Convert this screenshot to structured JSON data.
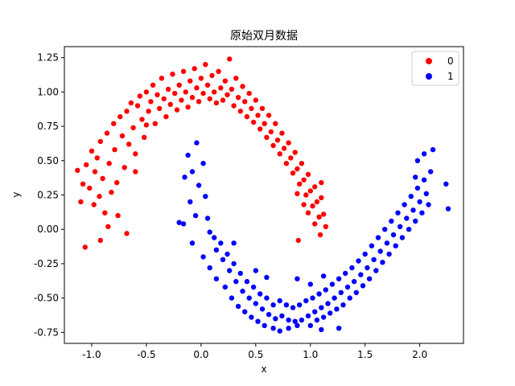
{
  "chart_data": {
    "type": "scatter",
    "title": "原始双月数据",
    "xlabel": "x",
    "ylabel": "y",
    "xlim": [
      -1.25,
      2.4
    ],
    "ylim": [
      -0.83,
      1.33
    ],
    "xticks": [
      -1.0,
      -0.5,
      0.0,
      0.5,
      1.0,
      1.5,
      2.0
    ],
    "xtick_labels": [
      "-1.0",
      "-0.5",
      "0.0",
      "0.5",
      "1.0",
      "1.5",
      "2.0"
    ],
    "yticks": [
      -0.75,
      -0.5,
      -0.25,
      0.0,
      0.25,
      0.5,
      0.75,
      1.0,
      1.25
    ],
    "ytick_labels": [
      "-0.75",
      "-0.50",
      "-0.25",
      "0.00",
      "0.25",
      "0.50",
      "0.75",
      "1.00",
      "1.25"
    ],
    "grid": false,
    "legend_position": "top-right",
    "series": [
      {
        "name": "0",
        "color": "#ff0000",
        "points": [
          [
            -1.13,
            0.43
          ],
          [
            -1.1,
            0.2
          ],
          [
            -1.08,
            0.33
          ],
          [
            -1.05,
            0.47
          ],
          [
            -1.02,
            0.3
          ],
          [
            -1.0,
            0.57
          ],
          [
            -0.98,
            0.18
          ],
          [
            -0.97,
            0.42
          ],
          [
            -0.95,
            0.52
          ],
          [
            -0.93,
            0.24
          ],
          [
            -0.92,
            0.64
          ],
          [
            -0.9,
            0.37
          ],
          [
            -0.88,
            0.12
          ],
          [
            -0.86,
            0.7
          ],
          [
            -0.84,
            0.48
          ],
          [
            -0.82,
            0.27
          ],
          [
            -0.8,
            0.77
          ],
          [
            -0.79,
            0.58
          ],
          [
            -0.77,
            0.34
          ],
          [
            -0.76,
            0.1
          ],
          [
            -0.74,
            0.82
          ],
          [
            -0.72,
            0.68
          ],
          [
            -0.7,
            0.45
          ],
          [
            -0.68,
            0.86
          ],
          [
            -0.66,
            0.62
          ],
          [
            -0.64,
            0.92
          ],
          [
            -0.62,
            0.74
          ],
          [
            -0.6,
            0.55
          ],
          [
            -0.58,
            0.9
          ],
          [
            -0.56,
            0.97
          ],
          [
            -0.54,
            0.8
          ],
          [
            -0.52,
            0.67
          ],
          [
            -0.5,
            1.0
          ],
          [
            -0.48,
            0.86
          ],
          [
            -0.46,
            0.93
          ],
          [
            -0.44,
            1.05
          ],
          [
            -0.42,
            0.77
          ],
          [
            -0.4,
            0.98
          ],
          [
            -0.38,
            0.88
          ],
          [
            -0.36,
            1.1
          ],
          [
            -0.34,
            0.95
          ],
          [
            -0.32,
            0.82
          ],
          [
            -0.3,
            1.02
          ],
          [
            -0.28,
            0.91
          ],
          [
            -0.26,
            1.13
          ],
          [
            -0.24,
            0.99
          ],
          [
            -0.22,
            0.87
          ],
          [
            -0.2,
            1.05
          ],
          [
            -0.18,
            0.94
          ],
          [
            -0.16,
            1.15
          ],
          [
            -0.14,
            1.0
          ],
          [
            -0.12,
            0.89
          ],
          [
            -0.1,
            1.08
          ],
          [
            -0.08,
            0.96
          ],
          [
            -0.06,
            1.17
          ],
          [
            -0.04,
            1.03
          ],
          [
            -0.02,
            0.93
          ],
          [
            0.0,
            1.1
          ],
          [
            0.02,
            0.99
          ],
          [
            0.04,
            1.2
          ],
          [
            0.06,
            1.05
          ],
          [
            0.08,
            0.95
          ],
          [
            0.1,
            1.12
          ],
          [
            0.12,
            1.0
          ],
          [
            0.14,
            0.92
          ],
          [
            0.16,
            1.15
          ],
          [
            0.18,
            1.03
          ],
          [
            0.2,
            0.94
          ],
          [
            0.22,
            1.08
          ],
          [
            0.24,
            0.98
          ],
          [
            0.26,
            1.24
          ],
          [
            0.28,
            1.02
          ],
          [
            0.3,
            0.9
          ],
          [
            0.32,
            1.1
          ],
          [
            0.34,
            0.96
          ],
          [
            0.36,
            0.86
          ],
          [
            0.38,
            1.04
          ],
          [
            0.4,
            0.93
          ],
          [
            0.42,
            0.82
          ],
          [
            0.44,
            0.99
          ],
          [
            0.46,
            0.88
          ],
          [
            0.48,
            0.78
          ],
          [
            0.5,
            0.94
          ],
          [
            0.52,
            0.83
          ],
          [
            0.54,
            0.73
          ],
          [
            0.56,
            0.88
          ],
          [
            0.58,
            0.77
          ],
          [
            0.6,
            0.67
          ],
          [
            0.62,
            0.83
          ],
          [
            0.64,
            0.71
          ],
          [
            0.66,
            0.61
          ],
          [
            0.68,
            0.77
          ],
          [
            0.7,
            0.65
          ],
          [
            0.72,
            0.55
          ],
          [
            0.74,
            0.7
          ],
          [
            0.76,
            0.59
          ],
          [
            0.78,
            0.48
          ],
          [
            0.8,
            0.63
          ],
          [
            0.82,
            0.52
          ],
          [
            0.84,
            0.41
          ],
          [
            0.86,
            0.56
          ],
          [
            0.88,
            0.44
          ],
          [
            0.9,
            0.33
          ],
          [
            0.92,
            0.48
          ],
          [
            0.94,
            0.36
          ],
          [
            0.96,
            0.25
          ],
          [
            0.98,
            0.4
          ],
          [
            1.0,
            0.28
          ],
          [
            1.02,
            0.17
          ],
          [
            1.04,
            0.31
          ],
          [
            1.06,
            0.2
          ],
          [
            1.08,
            0.09
          ],
          [
            1.1,
            0.23
          ],
          [
            1.12,
            0.11
          ],
          [
            1.14,
            0.02
          ],
          [
            1.04,
            0.04
          ],
          [
            0.98,
            0.12
          ],
          [
            1.1,
            0.34
          ],
          [
            0.94,
            0.18
          ],
          [
            0.88,
            0.26
          ],
          [
            -0.68,
            -0.03
          ],
          [
            -1.06,
            -0.13
          ],
          [
            -0.92,
            -0.08
          ],
          [
            0.89,
            -0.08
          ],
          [
            1.09,
            -0.04
          ],
          [
            -0.85,
            0.02
          ],
          [
            -0.6,
            0.42
          ],
          [
            -0.5,
            0.76
          ]
        ]
      },
      {
        "name": "1",
        "color": "#0000ff",
        "points": [
          [
            -0.04,
            0.63
          ],
          [
            -0.12,
            0.54
          ],
          [
            -0.08,
            0.42
          ],
          [
            -0.02,
            0.32
          ],
          [
            -0.15,
            0.38
          ],
          [
            -0.1,
            0.2
          ],
          [
            0.02,
            0.48
          ],
          [
            0.04,
            0.24
          ],
          [
            -0.05,
            0.1
          ],
          [
            -0.16,
            0.04
          ],
          [
            0.06,
            0.08
          ],
          [
            0.08,
            -0.02
          ],
          [
            -0.08,
            -0.1
          ],
          [
            0.12,
            -0.06
          ],
          [
            0.14,
            -0.15
          ],
          [
            0.02,
            -0.2
          ],
          [
            0.18,
            -0.1
          ],
          [
            0.2,
            -0.22
          ],
          [
            0.08,
            -0.28
          ],
          [
            0.24,
            -0.18
          ],
          [
            0.26,
            -0.3
          ],
          [
            0.14,
            -0.36
          ],
          [
            0.3,
            -0.25
          ],
          [
            0.32,
            -0.38
          ],
          [
            0.22,
            -0.42
          ],
          [
            0.36,
            -0.32
          ],
          [
            0.38,
            -0.45
          ],
          [
            0.28,
            -0.5
          ],
          [
            0.42,
            -0.38
          ],
          [
            0.44,
            -0.5
          ],
          [
            0.34,
            -0.56
          ],
          [
            0.48,
            -0.42
          ],
          [
            0.5,
            -0.54
          ],
          [
            0.4,
            -0.6
          ],
          [
            0.54,
            -0.47
          ],
          [
            0.56,
            -0.58
          ],
          [
            0.46,
            -0.64
          ],
          [
            0.6,
            -0.5
          ],
          [
            0.62,
            -0.62
          ],
          [
            0.52,
            -0.67
          ],
          [
            0.66,
            -0.55
          ],
          [
            0.68,
            -0.65
          ],
          [
            0.58,
            -0.7
          ],
          [
            0.72,
            -0.52
          ],
          [
            0.74,
            -0.63
          ],
          [
            0.66,
            -0.72
          ],
          [
            0.78,
            -0.55
          ],
          [
            0.8,
            -0.66
          ],
          [
            0.72,
            -0.74
          ],
          [
            0.84,
            -0.57
          ],
          [
            0.86,
            -0.67
          ],
          [
            0.8,
            -0.72
          ],
          [
            0.9,
            -0.55
          ],
          [
            0.92,
            -0.66
          ],
          [
            0.88,
            -0.7
          ],
          [
            0.96,
            -0.52
          ],
          [
            0.98,
            -0.63
          ],
          [
            1.0,
            -0.7
          ],
          [
            1.02,
            -0.5
          ],
          [
            1.04,
            -0.6
          ],
          [
            1.06,
            -0.66
          ],
          [
            1.08,
            -0.47
          ],
          [
            1.1,
            -0.57
          ],
          [
            1.12,
            -0.64
          ],
          [
            1.14,
            -0.44
          ],
          [
            1.16,
            -0.54
          ],
          [
            1.18,
            -0.61
          ],
          [
            1.2,
            -0.4
          ],
          [
            1.22,
            -0.5
          ],
          [
            1.24,
            -0.58
          ],
          [
            1.26,
            -0.36
          ],
          [
            1.28,
            -0.46
          ],
          [
            1.3,
            -0.55
          ],
          [
            1.32,
            -0.32
          ],
          [
            1.34,
            -0.42
          ],
          [
            1.36,
            -0.5
          ],
          [
            1.38,
            -0.28
          ],
          [
            1.4,
            -0.38
          ],
          [
            1.42,
            -0.46
          ],
          [
            1.44,
            -0.23
          ],
          [
            1.46,
            -0.33
          ],
          [
            1.48,
            -0.41
          ],
          [
            1.5,
            -0.18
          ],
          [
            1.52,
            -0.28
          ],
          [
            1.54,
            -0.36
          ],
          [
            1.56,
            -0.12
          ],
          [
            1.58,
            -0.22
          ],
          [
            1.6,
            -0.3
          ],
          [
            1.62,
            -0.06
          ],
          [
            1.64,
            -0.16
          ],
          [
            1.66,
            -0.24
          ],
          [
            1.68,
            0.0
          ],
          [
            1.7,
            -0.1
          ],
          [
            1.72,
            -0.18
          ],
          [
            1.74,
            0.06
          ],
          [
            1.76,
            -0.04
          ],
          [
            1.78,
            -0.12
          ],
          [
            1.8,
            0.12
          ],
          [
            1.82,
            0.02
          ],
          [
            1.84,
            -0.06
          ],
          [
            1.86,
            0.18
          ],
          [
            1.88,
            0.08
          ],
          [
            1.9,
            0.0
          ],
          [
            1.92,
            0.24
          ],
          [
            1.94,
            0.14
          ],
          [
            1.96,
            0.06
          ],
          [
            1.98,
            0.3
          ],
          [
            2.0,
            0.2
          ],
          [
            2.02,
            0.12
          ],
          [
            2.04,
            0.36
          ],
          [
            2.06,
            0.26
          ],
          [
            2.08,
            0.18
          ],
          [
            2.1,
            0.42
          ],
          [
            1.98,
            0.5
          ],
          [
            2.04,
            0.55
          ],
          [
            2.12,
            0.58
          ],
          [
            2.24,
            0.33
          ],
          [
            2.26,
            0.15
          ],
          [
            1.96,
            0.38
          ],
          [
            0.88,
            -0.36
          ],
          [
            1.0,
            -0.4
          ],
          [
            1.12,
            -0.34
          ],
          [
            1.1,
            -0.73
          ],
          [
            1.26,
            -0.72
          ],
          [
            0.5,
            -0.3
          ],
          [
            0.3,
            -0.1
          ],
          [
            0.6,
            -0.35
          ],
          [
            -0.2,
            0.05
          ]
        ]
      }
    ]
  }
}
